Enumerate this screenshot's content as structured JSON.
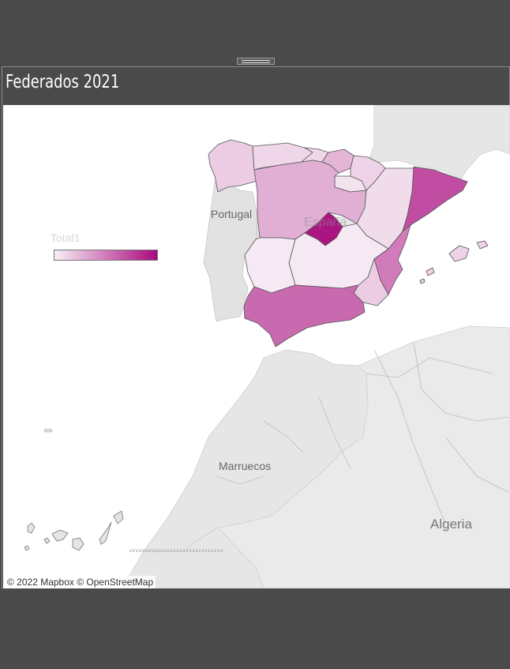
{
  "dashboard": {
    "title": "Federados 2021"
  },
  "legend": {
    "title": "Total1",
    "color_low": "#f7eef5",
    "color_high": "#a8087e"
  },
  "map": {
    "labels": {
      "portugal": "Portugal",
      "espana": "España",
      "marruecos": "Marruecos",
      "algeria": "Algeria"
    },
    "attribution": "© 2022 Mapbox © OpenStreetMap",
    "regions": [
      {
        "name": "Galicia",
        "level": 0.15
      },
      {
        "name": "Asturias",
        "level": 0.1
      },
      {
        "name": "Cantabria",
        "level": 0.1
      },
      {
        "name": "País Vasco",
        "level": 0.25
      },
      {
        "name": "Navarra",
        "level": 0.12
      },
      {
        "name": "La Rioja",
        "level": 0.05
      },
      {
        "name": "Aragón",
        "level": 0.08
      },
      {
        "name": "Cataluña",
        "level": 0.7
      },
      {
        "name": "Castilla y León",
        "level": 0.28
      },
      {
        "name": "Comunidad de Madrid",
        "level": 0.95
      },
      {
        "name": "Castilla-La Mancha",
        "level": 0.02
      },
      {
        "name": "Extremadura",
        "level": 0.02
      },
      {
        "name": "Comunidad Valenciana",
        "level": 0.5
      },
      {
        "name": "Región de Murcia",
        "level": 0.15
      },
      {
        "name": "Andalucía",
        "level": 0.58
      },
      {
        "name": "Islas Baleares",
        "level": 0.12
      }
    ]
  }
}
